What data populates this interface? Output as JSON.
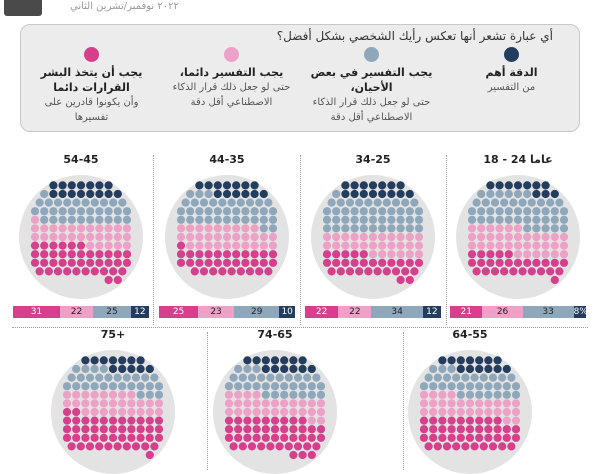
{
  "header": {
    "date": "٢٠٢٢ نوفمبر/تشرين الثاني"
  },
  "legend": {
    "question": "أي عبارة تشعر أنها تعكس رأيك الشخصي بشكل أفضل؟",
    "items": [
      {
        "title": "الدقة أهم",
        "desc": "من التفسير",
        "color": "#233d5e"
      },
      {
        "title": "يجب التفسير في بعض الأحيان،",
        "desc": "حتى لو جعل ذلك قرار الذكاء الاصطناعي أقل دقة",
        "color": "#8fa7ba"
      },
      {
        "title": "يجب التفسير دائما،",
        "desc": "حتى لو جعل ذلك قرار الذكاء الاصطناعي أقل دقة",
        "color": "#eda1c7"
      },
      {
        "title": "يجب أن يتخذ البشر القرارات دائما",
        "desc": "وأن يكونوا قادرين على تفسيرها",
        "color": "#d63f8c"
      }
    ]
  },
  "chart_data": {
    "type": "dot-matrix",
    "series": [
      {
        "name": "يجب أن يتخذ البشر القرارات دائما",
        "color": "#d63f8c"
      },
      {
        "name": "يجب التفسير دائما",
        "color": "#eda1c7"
      },
      {
        "name": "يجب التفسير في بعض الأحيان",
        "color": "#8fa7ba"
      },
      {
        "name": "الدقة أهم من التفسير",
        "color": "#233d5e"
      }
    ],
    "panels": [
      {
        "label": "18 - 24 عاما",
        "values": [
          21,
          26,
          33,
          8
        ],
        "labels": [
          "21",
          "26",
          "33",
          "8%"
        ]
      },
      {
        "label": "34-25",
        "values": [
          22,
          22,
          34,
          12
        ],
        "labels": [
          "22",
          "22",
          "34",
          "12"
        ]
      },
      {
        "label": "44-35",
        "values": [
          25,
          23,
          29,
          10
        ],
        "labels": [
          "25",
          "23",
          "29",
          "10"
        ]
      },
      {
        "label": "54-45",
        "values": [
          31,
          22,
          25,
          12
        ],
        "labels": [
          "31",
          "22",
          "25",
          "12"
        ]
      },
      {
        "label": "64-55",
        "values": [
          32,
          22,
          24,
          10
        ],
        "labels": []
      },
      {
        "label": "74-65",
        "values": [
          34,
          22,
          24,
          10
        ],
        "labels": []
      },
      {
        "label": "75+",
        "values": [
          36,
          22,
          22,
          9
        ],
        "labels": []
      }
    ]
  }
}
